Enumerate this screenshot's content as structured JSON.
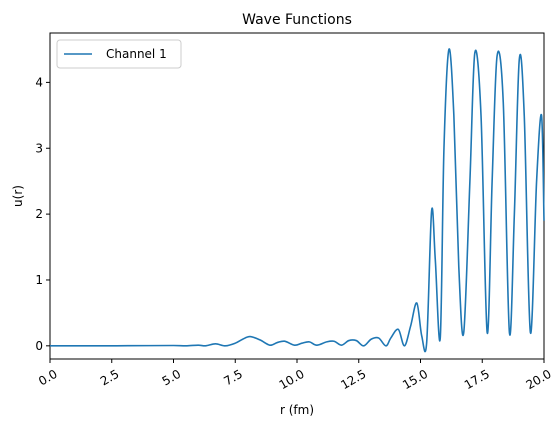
{
  "chart_data": {
    "type": "line",
    "title": "Wave Functions",
    "xlabel": "r (fm)",
    "ylabel": "u(r)",
    "xlim": [
      0,
      20
    ],
    "ylim": [
      -0.2,
      4.75
    ],
    "xticks": [
      "0.0",
      "2.5",
      "5.0",
      "7.5",
      "10.0",
      "12.5",
      "15.0",
      "17.5",
      "20.0"
    ],
    "yticks": [
      "0",
      "1",
      "2",
      "3",
      "4"
    ],
    "grid": false,
    "legend_position": "top-left",
    "series": [
      {
        "name": "Channel 1",
        "color": "#1f77b4",
        "x": [
          0,
          2,
          4,
          5.0,
          5.5,
          6.0,
          6.3,
          6.7,
          7.1,
          7.5,
          7.8,
          8.1,
          8.5,
          8.9,
          9.2,
          9.5,
          9.9,
          10.2,
          10.5,
          10.8,
          11.2,
          11.5,
          11.8,
          12.1,
          12.4,
          12.7,
          13.0,
          13.3,
          13.6,
          13.8,
          14.1,
          14.35,
          14.6,
          14.85,
          15.05,
          15.25,
          15.45,
          15.6,
          15.8,
          15.95,
          16.15,
          16.35,
          16.55,
          16.75,
          17.0,
          17.2,
          17.45,
          17.7,
          17.9,
          18.1,
          18.35,
          18.6,
          18.8,
          19.0,
          19.2,
          19.45,
          19.7,
          19.9,
          20.0
        ],
        "y": [
          0.0,
          0.0,
          0.003,
          0.005,
          0.0,
          0.01,
          0.0,
          0.03,
          0.0,
          0.04,
          0.1,
          0.14,
          0.09,
          0.01,
          0.05,
          0.07,
          0.01,
          0.04,
          0.06,
          0.01,
          0.06,
          0.07,
          0.01,
          0.08,
          0.08,
          0.0,
          0.1,
          0.12,
          0.0,
          0.12,
          0.25,
          0.0,
          0.3,
          0.65,
          0.15,
          0.05,
          2.05,
          1.3,
          0.12,
          3.0,
          4.5,
          3.5,
          1.2,
          0.2,
          2.5,
          4.45,
          3.5,
          0.2,
          2.5,
          4.4,
          3.7,
          0.2,
          2.0,
          4.35,
          3.5,
          0.2,
          2.5,
          3.5,
          1.9
        ]
      }
    ]
  }
}
